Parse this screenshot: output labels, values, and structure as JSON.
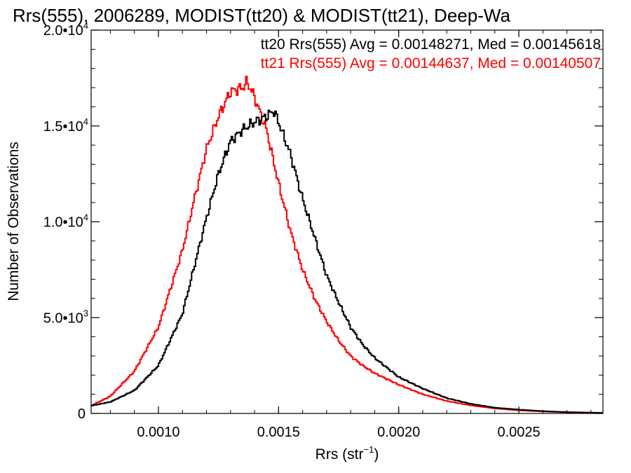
{
  "chart_data": {
    "type": "histogram-step",
    "title": "Rrs(555), 2006289, MODIST(tt20) & MODIST(tt21), Deep-Wa",
    "xlabel_base": "Rrs (str",
    "xlabel_sup": "−1",
    "xlabel_end": ")",
    "ylabel": "Number of Observations",
    "xlim": [
      0.00072,
      0.00285
    ],
    "ylim": [
      0,
      20000
    ],
    "x_ticks": [
      {
        "value": 0.001,
        "label": "0.0010"
      },
      {
        "value": 0.0015,
        "label": "0.0015"
      },
      {
        "value": 0.002,
        "label": "0.0020"
      },
      {
        "value": 0.0025,
        "label": "0.0025"
      }
    ],
    "y_ticks": [
      {
        "value": 0,
        "mant": "0",
        "exp": ""
      },
      {
        "value": 5000,
        "mant": "5.0•10",
        "exp": "3"
      },
      {
        "value": 10000,
        "mant": "1.0•10",
        "exp": "4"
      },
      {
        "value": 15000,
        "mant": "1.5•10",
        "exp": "4"
      },
      {
        "value": 20000,
        "mant": "2.0•10",
        "exp": "4"
      }
    ],
    "legend_position": "top-right",
    "series": [
      {
        "name": "tt20",
        "legend_text": "tt20 Rrs(555) Avg = 0.00148271, Med = 0.00145618",
        "color": "#000000",
        "points": [
          [
            0.00072,
            400
          ],
          [
            0.0008,
            600
          ],
          [
            0.0009,
            1200
          ],
          [
            0.001,
            2500
          ],
          [
            0.0011,
            5200
          ],
          [
            0.0012,
            10200
          ],
          [
            0.00125,
            12500
          ],
          [
            0.0013,
            14200
          ],
          [
            0.00135,
            14800
          ],
          [
            0.0014,
            15200
          ],
          [
            0.00145,
            15500
          ],
          [
            0.00148,
            15800
          ],
          [
            0.0015,
            15200
          ],
          [
            0.00155,
            13500
          ],
          [
            0.0016,
            11200
          ],
          [
            0.00165,
            9200
          ],
          [
            0.0017,
            7200
          ],
          [
            0.00175,
            5800
          ],
          [
            0.0018,
            4500
          ],
          [
            0.00185,
            3600
          ],
          [
            0.0019,
            2900
          ],
          [
            0.00195,
            2400
          ],
          [
            0.002,
            1900
          ],
          [
            0.0021,
            1300
          ],
          [
            0.0022,
            800
          ],
          [
            0.0023,
            500
          ],
          [
            0.0024,
            300
          ],
          [
            0.0025,
            200
          ],
          [
            0.0026,
            120
          ],
          [
            0.0027,
            70
          ],
          [
            0.00285,
            30
          ]
        ]
      },
      {
        "name": "tt21",
        "legend_text": "tt21 Rrs(555) Avg = 0.00144637, Med = 0.00140507",
        "color": "#ff0000",
        "points": [
          [
            0.00072,
            400
          ],
          [
            0.0008,
            900
          ],
          [
            0.0009,
            2200
          ],
          [
            0.001,
            4500
          ],
          [
            0.0011,
            8500
          ],
          [
            0.00115,
            11200
          ],
          [
            0.0012,
            13800
          ],
          [
            0.00125,
            15500
          ],
          [
            0.0013,
            16800
          ],
          [
            0.00135,
            17000
          ],
          [
            0.00137,
            17300
          ],
          [
            0.0014,
            16500
          ],
          [
            0.00145,
            14800
          ],
          [
            0.0015,
            12000
          ],
          [
            0.00155,
            9500
          ],
          [
            0.0016,
            7500
          ],
          [
            0.00165,
            6000
          ],
          [
            0.0017,
            4800
          ],
          [
            0.00175,
            3800
          ],
          [
            0.0018,
            3000
          ],
          [
            0.00185,
            2500
          ],
          [
            0.0019,
            2100
          ],
          [
            0.00195,
            1800
          ],
          [
            0.002,
            1500
          ],
          [
            0.0021,
            1000
          ],
          [
            0.0022,
            650
          ],
          [
            0.0023,
            420
          ],
          [
            0.0024,
            260
          ],
          [
            0.0025,
            160
          ],
          [
            0.0026,
            100
          ],
          [
            0.0027,
            60
          ],
          [
            0.00285,
            25
          ]
        ]
      }
    ]
  }
}
